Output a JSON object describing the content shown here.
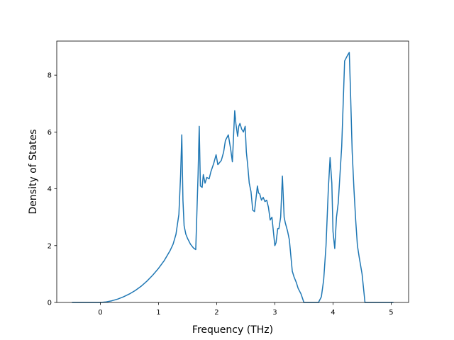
{
  "chart_data": {
    "type": "line",
    "xlabel": "Frequency (THz)",
    "ylabel": "Density of States",
    "xlim": [
      -0.75,
      5.3
    ],
    "ylim": [
      0,
      9.2
    ],
    "xticks": [
      0,
      1,
      2,
      3,
      4,
      5
    ],
    "yticks": [
      0,
      2,
      4,
      6,
      8
    ],
    "grid": false,
    "line_color": "#1f77b4",
    "series": [
      {
        "x": [
          -0.48,
          -0.3,
          -0.1,
          0.0,
          0.1,
          0.2,
          0.3,
          0.4,
          0.5,
          0.6,
          0.7,
          0.8,
          0.9,
          1.0,
          1.1,
          1.2,
          1.25,
          1.3,
          1.35,
          1.38,
          1.4,
          1.42,
          1.44,
          1.47,
          1.5,
          1.55,
          1.6,
          1.64,
          1.68,
          1.7,
          1.72,
          1.75,
          1.77,
          1.8,
          1.83,
          1.87,
          1.9,
          1.95,
          1.99,
          2.02,
          2.08,
          2.12,
          2.15,
          2.2,
          2.24,
          2.27,
          2.31,
          2.33,
          2.36,
          2.38,
          2.4,
          2.43,
          2.46,
          2.49,
          2.51,
          2.53,
          2.56,
          2.59,
          2.62,
          2.65,
          2.67,
          2.7,
          2.72,
          2.74,
          2.77,
          2.8,
          2.83,
          2.86,
          2.89,
          2.92,
          2.95,
          2.98,
          3.0,
          3.02,
          3.05,
          3.07,
          3.1,
          3.13,
          3.16,
          3.18,
          3.2,
          3.22,
          3.25,
          3.3,
          3.33,
          3.37,
          3.4,
          3.45,
          3.5,
          3.53,
          3.55,
          3.58,
          3.6,
          3.7,
          3.75,
          3.8,
          3.84,
          3.88,
          3.92,
          3.95,
          3.98,
          4.0,
          4.03,
          4.06,
          4.09,
          4.12,
          4.15,
          4.2,
          4.25,
          4.28,
          4.3,
          4.33,
          4.36,
          4.39,
          4.42,
          4.45,
          4.5,
          4.55,
          4.6,
          4.65,
          4.7,
          4.9,
          5.03
        ],
        "y": [
          0,
          0,
          0,
          0,
          0.02,
          0.06,
          0.12,
          0.2,
          0.3,
          0.42,
          0.57,
          0.75,
          0.96,
          1.2,
          1.48,
          1.83,
          2.05,
          2.4,
          3.1,
          4.5,
          5.9,
          3.6,
          2.7,
          2.4,
          2.25,
          2.05,
          1.92,
          1.86,
          4.5,
          6.2,
          4.1,
          4.05,
          4.5,
          4.2,
          4.4,
          4.35,
          4.6,
          4.9,
          5.2,
          4.85,
          5.0,
          5.3,
          5.7,
          5.9,
          5.4,
          4.95,
          6.75,
          6.3,
          5.85,
          6.2,
          6.3,
          6.1,
          6.0,
          6.2,
          5.3,
          4.9,
          4.2,
          3.9,
          3.25,
          3.2,
          3.55,
          4.1,
          3.85,
          3.82,
          3.6,
          3.7,
          3.55,
          3.6,
          3.35,
          2.9,
          3.0,
          2.4,
          2.0,
          2.1,
          2.6,
          2.6,
          3.0,
          4.45,
          3.0,
          2.8,
          2.65,
          2.5,
          2.2,
          1.1,
          0.9,
          0.7,
          0.5,
          0.3,
          0.0,
          0.0,
          0.0,
          0.0,
          0.0,
          0.0,
          0.0,
          0.2,
          0.8,
          2.0,
          4.0,
          5.1,
          4.2,
          2.5,
          1.9,
          3.0,
          3.5,
          4.5,
          5.5,
          8.5,
          8.7,
          8.8,
          7.5,
          5.3,
          4.0,
          2.9,
          2.0,
          1.6,
          1.0,
          0.0,
          0.0,
          0.0,
          0.0,
          0.0,
          0.0
        ]
      }
    ]
  }
}
